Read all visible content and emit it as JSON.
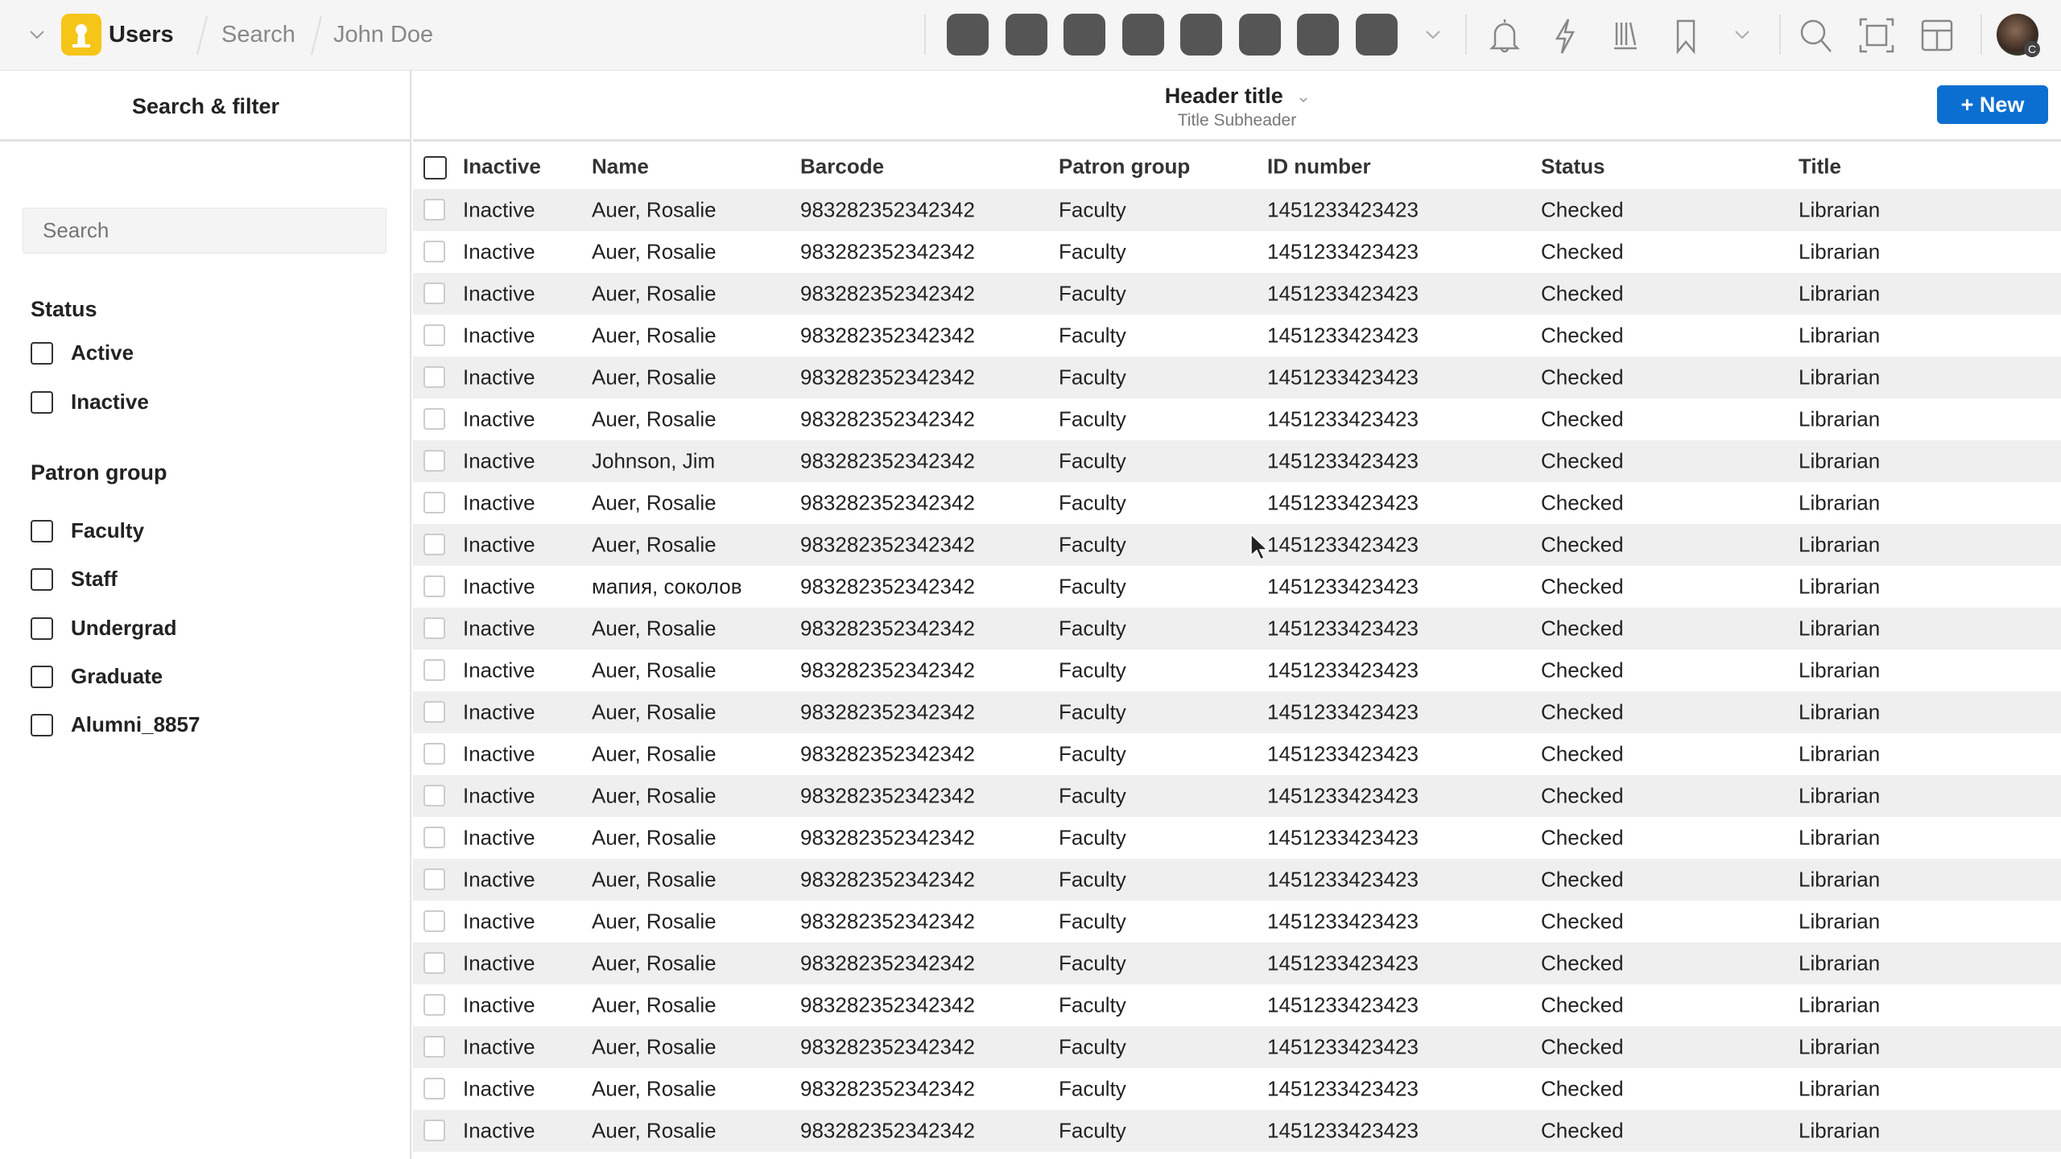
{
  "app": {
    "name": "Users",
    "breadcrumbs": [
      "Search",
      "John Doe"
    ]
  },
  "toolbar": {
    "app_buttons": 8,
    "icons": [
      "bell-icon",
      "bolt-icon",
      "library-icon",
      "bookmark-icon",
      "search-icon",
      "fullscreen-frame-icon",
      "layout-icon"
    ],
    "avatar_badge": "C"
  },
  "sidebar": {
    "title": "Search & filter",
    "search_placeholder": "Search",
    "groups": [
      {
        "label": "Status",
        "options": [
          "Active",
          "Inactive"
        ]
      },
      {
        "label": "Patron group",
        "options": [
          "Faculty",
          "Staff",
          "Undergrad",
          "Graduate",
          "Alumni_8857"
        ]
      }
    ]
  },
  "header": {
    "title": "Header title",
    "subtitle": "Title Subheader",
    "new_button": "+ New"
  },
  "colors": {
    "accent": "#0b6fd1",
    "app_icon": "#f5c518",
    "stripe": "#efefef"
  },
  "table": {
    "columns": [
      "Inactive",
      "Name",
      "Barcode",
      "Patron group",
      "ID number",
      "Status",
      "Title"
    ],
    "rows": [
      [
        "Inactive",
        "Auer, Rosalie",
        "983282352342342",
        "Faculty",
        "1451233423423",
        "Checked",
        "Librarian"
      ],
      [
        "Inactive",
        "Auer, Rosalie",
        "983282352342342",
        "Faculty",
        "1451233423423",
        "Checked",
        "Librarian"
      ],
      [
        "Inactive",
        "Auer, Rosalie",
        "983282352342342",
        "Faculty",
        "1451233423423",
        "Checked",
        "Librarian"
      ],
      [
        "Inactive",
        "Auer, Rosalie",
        "983282352342342",
        "Faculty",
        "1451233423423",
        "Checked",
        "Librarian"
      ],
      [
        "Inactive",
        "Auer, Rosalie",
        "983282352342342",
        "Faculty",
        "1451233423423",
        "Checked",
        "Librarian"
      ],
      [
        "Inactive",
        "Auer, Rosalie",
        "983282352342342",
        "Faculty",
        "1451233423423",
        "Checked",
        "Librarian"
      ],
      [
        "Inactive",
        "Johnson, Jim",
        "983282352342342",
        "Faculty",
        "1451233423423",
        "Checked",
        "Librarian"
      ],
      [
        "Inactive",
        "Auer, Rosalie",
        "983282352342342",
        "Faculty",
        "1451233423423",
        "Checked",
        "Librarian"
      ],
      [
        "Inactive",
        "Auer, Rosalie",
        "983282352342342",
        "Faculty",
        "1451233423423",
        "Checked",
        "Librarian"
      ],
      [
        "Inactive",
        "мапия, соколов",
        "983282352342342",
        "Faculty",
        "1451233423423",
        "Checked",
        "Librarian"
      ],
      [
        "Inactive",
        "Auer, Rosalie",
        "983282352342342",
        "Faculty",
        "1451233423423",
        "Checked",
        "Librarian"
      ],
      [
        "Inactive",
        "Auer, Rosalie",
        "983282352342342",
        "Faculty",
        "1451233423423",
        "Checked",
        "Librarian"
      ],
      [
        "Inactive",
        "Auer, Rosalie",
        "983282352342342",
        "Faculty",
        "1451233423423",
        "Checked",
        "Librarian"
      ],
      [
        "Inactive",
        "Auer, Rosalie",
        "983282352342342",
        "Faculty",
        "1451233423423",
        "Checked",
        "Librarian"
      ],
      [
        "Inactive",
        "Auer, Rosalie",
        "983282352342342",
        "Faculty",
        "1451233423423",
        "Checked",
        "Librarian"
      ],
      [
        "Inactive",
        "Auer, Rosalie",
        "983282352342342",
        "Faculty",
        "1451233423423",
        "Checked",
        "Librarian"
      ],
      [
        "Inactive",
        "Auer, Rosalie",
        "983282352342342",
        "Faculty",
        "1451233423423",
        "Checked",
        "Librarian"
      ],
      [
        "Inactive",
        "Auer, Rosalie",
        "983282352342342",
        "Faculty",
        "1451233423423",
        "Checked",
        "Librarian"
      ],
      [
        "Inactive",
        "Auer, Rosalie",
        "983282352342342",
        "Faculty",
        "1451233423423",
        "Checked",
        "Librarian"
      ],
      [
        "Inactive",
        "Auer, Rosalie",
        "983282352342342",
        "Faculty",
        "1451233423423",
        "Checked",
        "Librarian"
      ],
      [
        "Inactive",
        "Auer, Rosalie",
        "983282352342342",
        "Faculty",
        "1451233423423",
        "Checked",
        "Librarian"
      ],
      [
        "Inactive",
        "Auer, Rosalie",
        "983282352342342",
        "Faculty",
        "1451233423423",
        "Checked",
        "Librarian"
      ],
      [
        "Inactive",
        "Auer, Rosalie",
        "983282352342342",
        "Faculty",
        "1451233423423",
        "Checked",
        "Librarian"
      ]
    ]
  }
}
